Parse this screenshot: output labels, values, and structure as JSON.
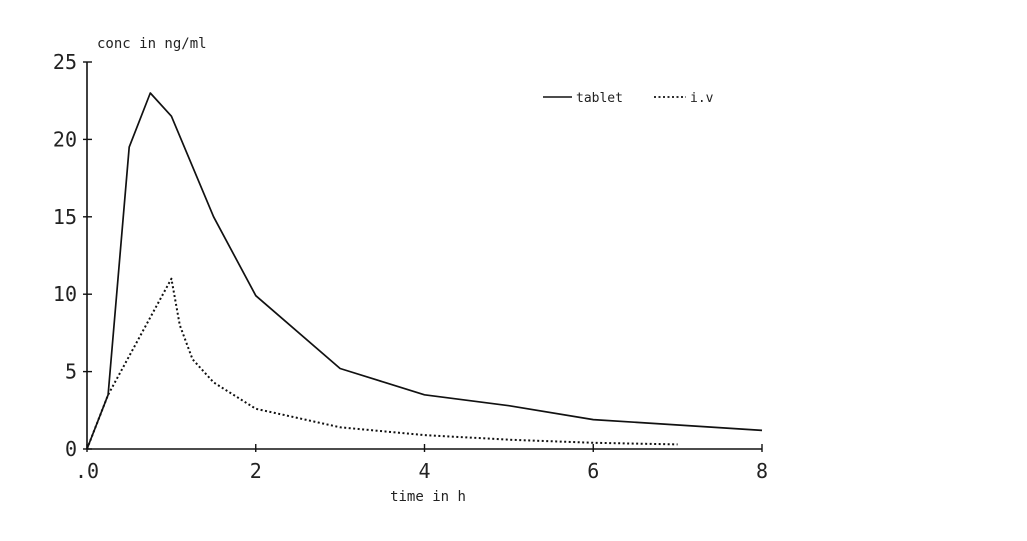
{
  "chart_data": {
    "type": "line",
    "title": "",
    "xlabel": "time in h",
    "ylabel": "conc in ng/ml",
    "xlim": [
      0,
      8
    ],
    "ylim": [
      0,
      25
    ],
    "x_ticks": [
      0,
      2,
      4,
      6,
      8
    ],
    "x_tick_labels": [
      ".0",
      "2",
      "4",
      "6",
      "8"
    ],
    "y_ticks": [
      0,
      5,
      10,
      15,
      20,
      25
    ],
    "y_tick_labels": [
      "0",
      "5",
      "10",
      "15",
      "20",
      "25"
    ],
    "grid": false,
    "legend_position": "top-right",
    "series": [
      {
        "name": "tablet",
        "style": "solid",
        "color": "#111111",
        "points": [
          [
            0,
            0
          ],
          [
            0.25,
            3.5
          ],
          [
            0.5,
            19.5
          ],
          [
            0.75,
            23
          ],
          [
            1,
            21.5
          ],
          [
            1.5,
            15
          ],
          [
            2,
            9.9
          ],
          [
            3,
            5.2
          ],
          [
            4,
            3.5
          ],
          [
            5,
            2.8
          ],
          [
            6,
            1.9
          ],
          [
            8,
            1.2
          ]
        ]
      },
      {
        "name": "i.v",
        "style": "dotted",
        "color": "#111111",
        "points": [
          [
            0,
            0
          ],
          [
            0.25,
            3.5
          ],
          [
            0.5,
            6
          ],
          [
            0.75,
            8.5
          ],
          [
            1,
            11
          ],
          [
            1.1,
            8
          ],
          [
            1.25,
            5.8
          ],
          [
            1.5,
            4.3
          ],
          [
            2,
            2.6
          ],
          [
            2.5,
            2
          ],
          [
            3,
            1.4
          ],
          [
            4,
            0.9
          ],
          [
            5,
            0.6
          ],
          [
            6,
            0.4
          ],
          [
            7,
            0.3
          ]
        ]
      }
    ]
  }
}
